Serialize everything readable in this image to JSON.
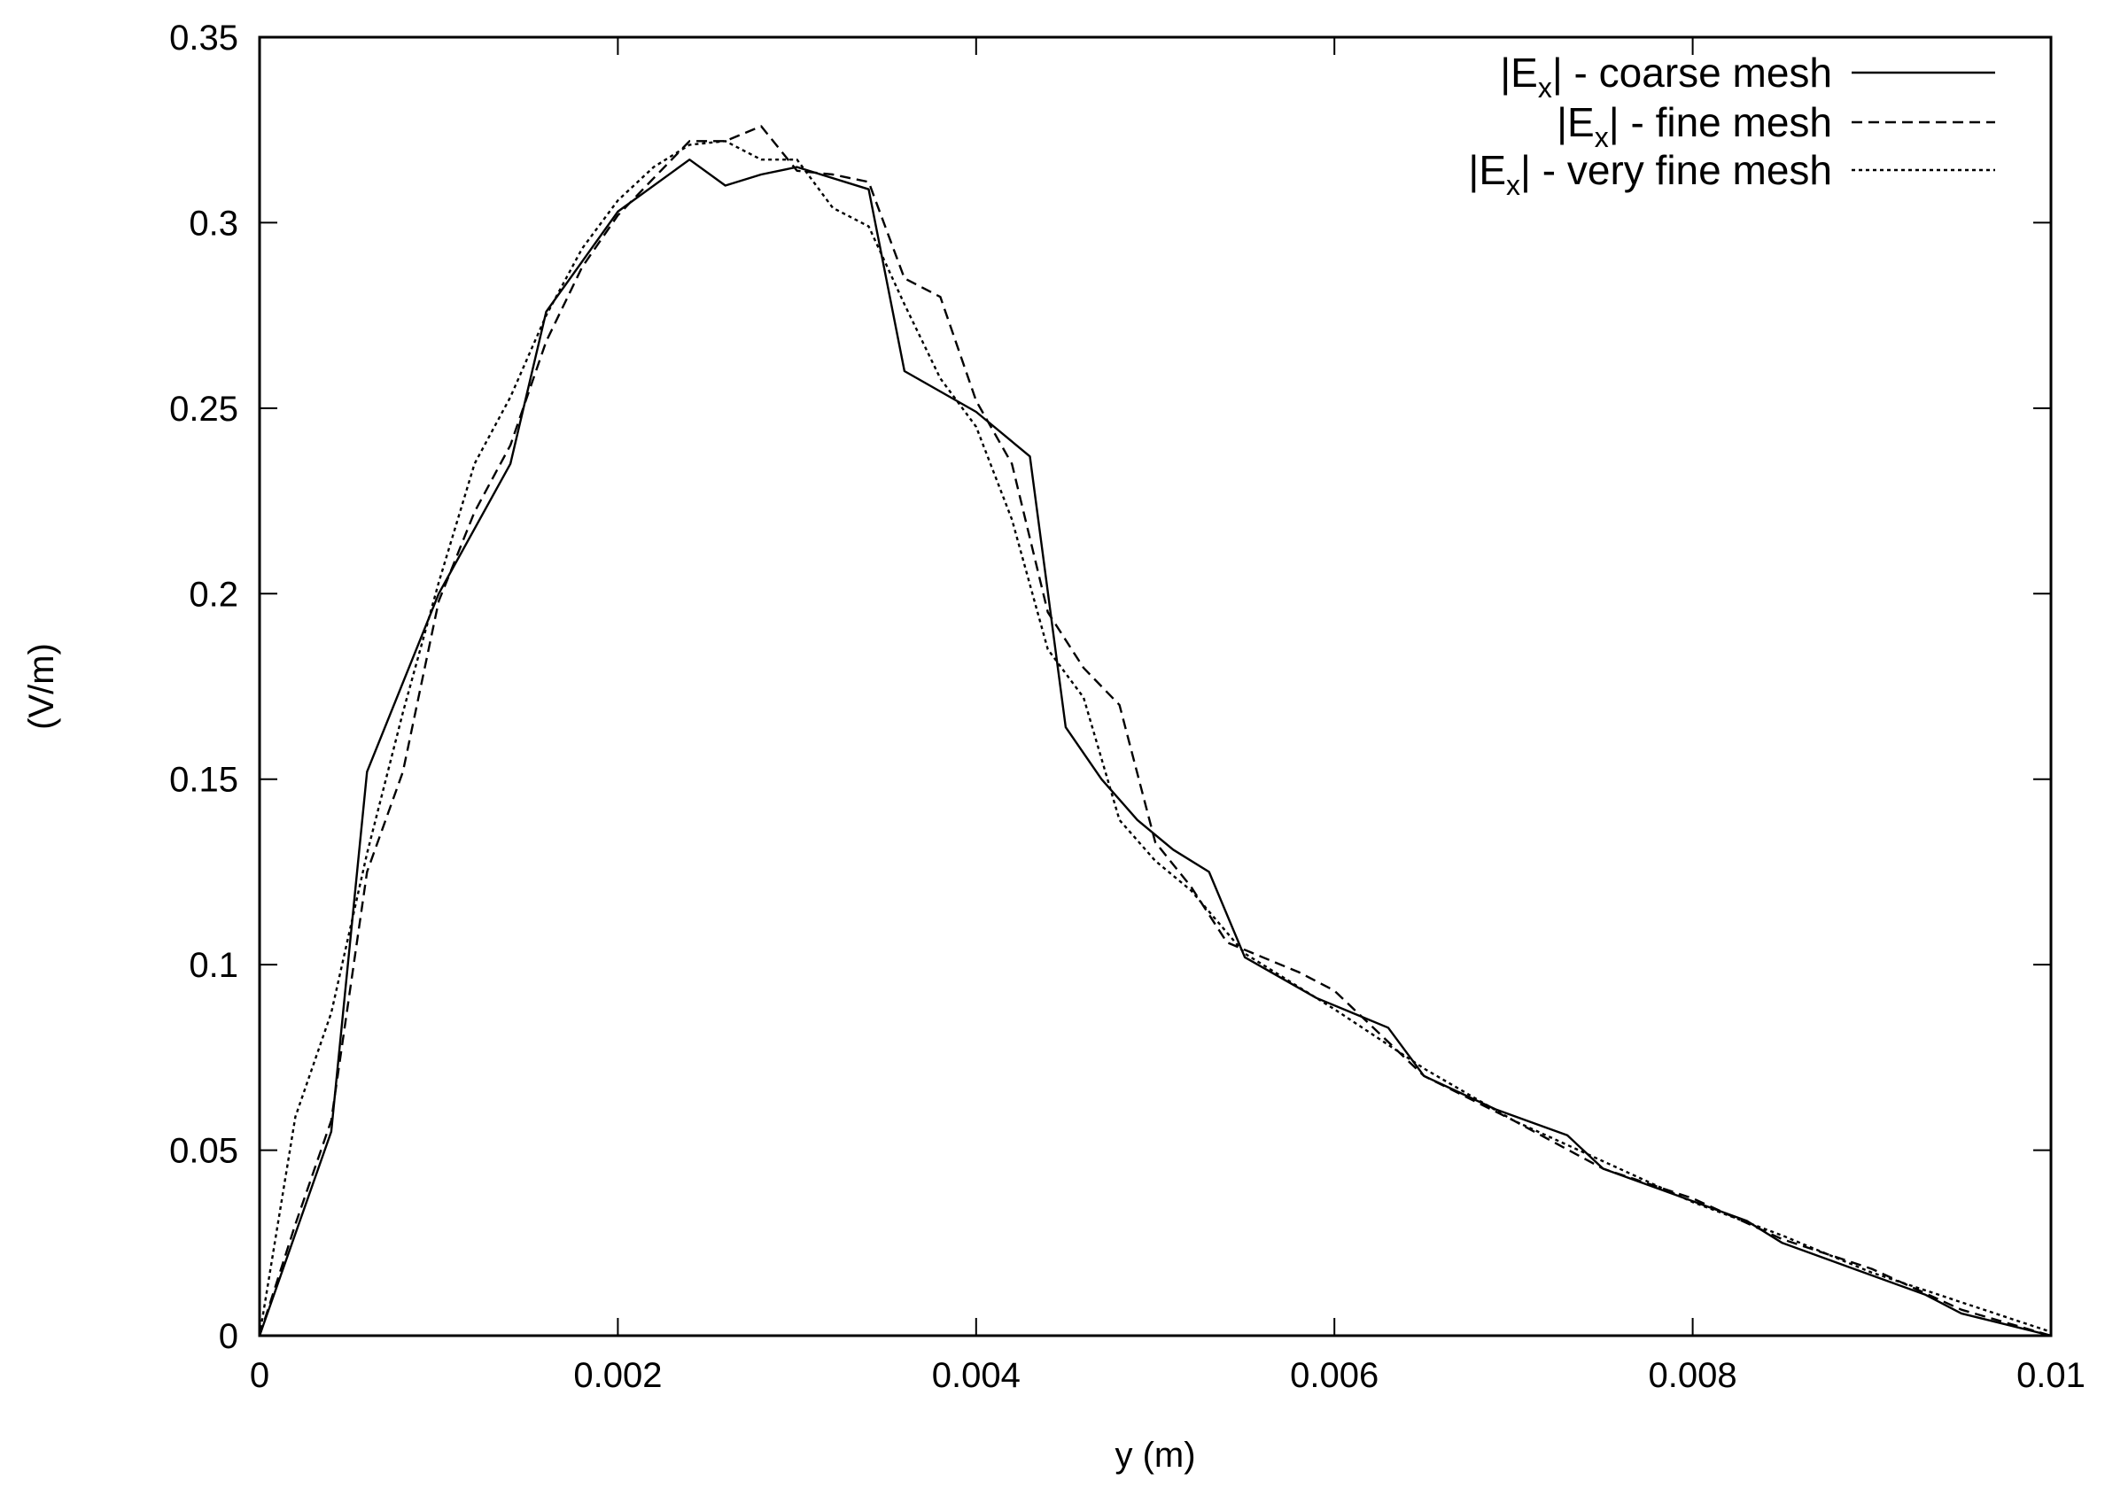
{
  "chart_data": {
    "type": "line",
    "title": "",
    "xlabel": "y (m)",
    "ylabel": "(V/m)",
    "xlim": [
      0,
      0.01
    ],
    "ylim": [
      0,
      0.35
    ],
    "xticks": [
      0,
      0.002,
      0.004,
      0.006,
      0.008,
      0.01
    ],
    "xtick_labels": [
      "0",
      "0.002",
      "0.004",
      "0.006",
      "0.008",
      "0.01"
    ],
    "yticks": [
      0,
      0.05,
      0.1,
      0.15,
      0.2,
      0.25,
      0.3,
      0.35
    ],
    "ytick_labels": [
      "0",
      "0.05",
      "0.1",
      "0.15",
      "0.2",
      "0.25",
      "0.3",
      "0.35"
    ],
    "grid": false,
    "legend_position": "top-right",
    "series": [
      {
        "name": "|Ex| - coarse mesh",
        "legend": {
          "prefix": "|E",
          "sub": "x",
          "suffix": "| - coarse mesh"
        },
        "dash": "solid",
        "color": "#000000",
        "x": [
          0,
          0.0004,
          0.0006,
          0.001,
          0.0014,
          0.0016,
          0.002,
          0.0024,
          0.0026,
          0.0028,
          0.003,
          0.0034,
          0.0036,
          0.004,
          0.0043,
          0.0045,
          0.0047,
          0.0049,
          0.0051,
          0.0053,
          0.0055,
          0.0059,
          0.0063,
          0.0065,
          0.0069,
          0.0073,
          0.0075,
          0.0079,
          0.0083,
          0.0085,
          0.0089,
          0.0093,
          0.0095,
          0.01
        ],
        "y": [
          0,
          0.055,
          0.152,
          0.2,
          0.235,
          0.276,
          0.303,
          0.317,
          0.31,
          0.313,
          0.315,
          0.309,
          0.26,
          0.249,
          0.237,
          0.164,
          0.15,
          0.139,
          0.131,
          0.125,
          0.102,
          0.091,
          0.083,
          0.07,
          0.061,
          0.054,
          0.045,
          0.038,
          0.031,
          0.025,
          0.018,
          0.011,
          0.006,
          0
        ]
      },
      {
        "name": "|Ex| - fine mesh",
        "legend": {
          "prefix": "|E",
          "sub": "x",
          "suffix": "| - fine mesh"
        },
        "dash": "dashed",
        "color": "#000000",
        "x": [
          0,
          0.0002,
          0.0004,
          0.0006,
          0.0008,
          0.001,
          0.0012,
          0.0014,
          0.0016,
          0.0018,
          0.002,
          0.0022,
          0.0024,
          0.0026,
          0.0028,
          0.003,
          0.0032,
          0.0034,
          0.0036,
          0.0038,
          0.004,
          0.0042,
          0.0044,
          0.0046,
          0.0048,
          0.005,
          0.0052,
          0.0054,
          0.0056,
          0.0058,
          0.006,
          0.0065,
          0.007,
          0.0075,
          0.008,
          0.0085,
          0.009,
          0.0095,
          0.01
        ],
        "y": [
          0,
          0.03,
          0.058,
          0.125,
          0.152,
          0.198,
          0.222,
          0.24,
          0.268,
          0.288,
          0.302,
          0.312,
          0.322,
          0.322,
          0.326,
          0.314,
          0.313,
          0.311,
          0.285,
          0.28,
          0.252,
          0.235,
          0.195,
          0.18,
          0.17,
          0.133,
          0.121,
          0.106,
          0.102,
          0.098,
          0.093,
          0.07,
          0.058,
          0.045,
          0.037,
          0.026,
          0.018,
          0.007,
          0
        ]
      },
      {
        "name": "|Ex| - very fine mesh",
        "legend": {
          "prefix": "|E",
          "sub": "x",
          "suffix": "| - very fine mesh"
        },
        "dash": "dotted",
        "color": "#000000",
        "x": [
          0,
          0.0002,
          0.0004,
          0.0006,
          0.0008,
          0.001,
          0.0012,
          0.0014,
          0.0016,
          0.0018,
          0.002,
          0.0022,
          0.0024,
          0.0026,
          0.0028,
          0.003,
          0.0032,
          0.0034,
          0.0036,
          0.0038,
          0.004,
          0.0042,
          0.0044,
          0.0046,
          0.0048,
          0.005,
          0.0052,
          0.0055,
          0.006,
          0.0065,
          0.007,
          0.0075,
          0.008,
          0.0085,
          0.009,
          0.0095,
          0.01
        ],
        "y": [
          0,
          0.059,
          0.087,
          0.13,
          0.168,
          0.203,
          0.235,
          0.253,
          0.275,
          0.293,
          0.306,
          0.315,
          0.321,
          0.322,
          0.317,
          0.317,
          0.304,
          0.299,
          0.278,
          0.258,
          0.245,
          0.22,
          0.185,
          0.172,
          0.139,
          0.128,
          0.12,
          0.103,
          0.088,
          0.072,
          0.058,
          0.047,
          0.036,
          0.027,
          0.017,
          0.009,
          0.001
        ]
      }
    ]
  }
}
